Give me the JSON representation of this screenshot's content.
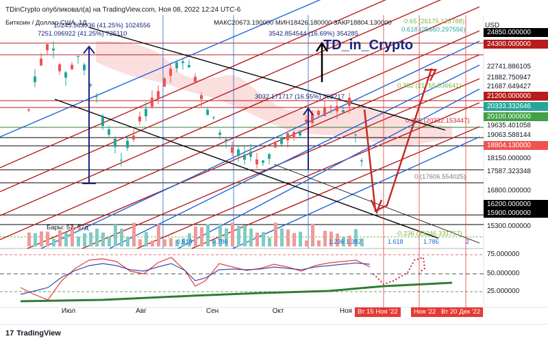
{
  "header": {
    "line1": "TDinCrypto опубликовал(а) на TradingView.com, Ноя 08, 2022 12:24 UTC-6",
    "symbol_prefix": "Биткоин / Доллар США, 1Д",
    "ohlc": "МАКС20673.190000 МИН18426.180000 ЗАКР18804.130000"
  },
  "overlay_title": "TD_in_Crypto",
  "currency": "USD",
  "price_labels": [
    {
      "text": "24850.000000",
      "bg": "#000000"
    },
    {
      "text": "24300.000000",
      "bg": "#b71c1c"
    },
    {
      "text": "22741.886105",
      "bg": ""
    },
    {
      "text": "21882.750947",
      "bg": ""
    },
    {
      "text": "21687.649427",
      "bg": ""
    },
    {
      "text": "21200.000000",
      "bg": "#b71c1c"
    },
    {
      "text": "20333.332646",
      "bg": "#26a69a"
    },
    {
      "text": "20100.000000",
      "bg": "#43a047"
    },
    {
      "text": "19635.401058",
      "bg": ""
    },
    {
      "text": "19063.588144",
      "bg": ""
    },
    {
      "text": "18804.130000",
      "bg": "#ef5350"
    },
    {
      "text": "18150.000000",
      "bg": ""
    },
    {
      "text": "17587.323348",
      "bg": ""
    },
    {
      "text": "16800.000000",
      "bg": ""
    },
    {
      "text": "16200.000000",
      "bg": "#000000"
    },
    {
      "text": "15900.000000",
      "bg": "#000000"
    },
    {
      "text": "15300.000000",
      "bg": ""
    }
  ],
  "rsi_labels": [
    "75.000000",
    "50.000000",
    "25.000000"
  ],
  "time_labels": [
    "Июл",
    "Авг",
    "Сен",
    "Окт",
    "Ноя"
  ],
  "time_badges": [
    "Вт 15 Ноя '22",
    "Ноя '22",
    "Вт 20 Дек '22"
  ],
  "annotations": {
    "measure1": "10245.563036 (41.25%) 1024556",
    "measure2": "7251.096922 (41.25%) 725110",
    "measure3": "3542.854544 (16.69%) 354285",
    "measure4": "3032.171717 (16.55%) 303217",
    "fib_top": "0.65 (26175.123788)",
    "fib_top2": "0.618 (25660.297556)",
    "fib_382": "0.382 (21755.536641)",
    "fib_236": "0.236 (20332.153447)",
    "fib_0": "0 (17606.554025)",
    "fib_bottom": "-0.236 (15246.331757)",
    "bars": "Бары: 57, 57д",
    "fib_ext": [
      "0.618",
      "0.786",
      "1.236",
      "1.382",
      "1.618",
      "1.786",
      "2"
    ]
  },
  "footer": {
    "brand": "TradingView"
  },
  "colors": {
    "up": "#26a69a",
    "down": "#ef5350",
    "channel_red": "#b71c1c",
    "channel_blue": "#1e63d6",
    "cloud": "#f8c8c8",
    "rsi_red": "#e53935",
    "rsi_blue": "#3949ab",
    "ma_green": "#2e7d32"
  }
}
